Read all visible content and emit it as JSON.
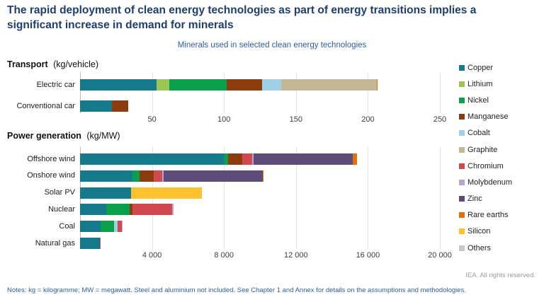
{
  "title": "The rapid deployment of clean energy technologies as part of energy transitions implies a significant increase in demand for minerals",
  "subtitle": "Minerals used in selected clean energy technologies",
  "footer": {
    "rights": "IEA. All rights reserved.",
    "notes": "Notes: kg = kilogramme; MW = megawatt. Steel and aluminium not included. See Chapter 1 and Annex for details on the assumptions and methodologies."
  },
  "colors": {
    "Copper": "#157a8b",
    "Lithium": "#9bc653",
    "Nickel": "#0ba04c",
    "Manganese": "#8d3c10",
    "Cobalt": "#9fd0e6",
    "Graphite": "#c3b795",
    "Chromium": "#d1494f",
    "Molybdenum": "#b5a5d3",
    "Zinc": "#5d4b79",
    "Rare earths": "#e1700e",
    "Silicon": "#fdc22d",
    "Others": "#c8c8c8"
  },
  "legend": [
    "Copper",
    "Lithium",
    "Nickel",
    "Manganese",
    "Cobalt",
    "Graphite",
    "Chromium",
    "Molybdenum",
    "Zinc",
    "Rare earths",
    "Silicon",
    "Others"
  ],
  "chart_data": [
    {
      "type": "bar",
      "orientation": "horizontal",
      "stacked": true,
      "title": "Transport",
      "unit": "(kg/vehicle)",
      "categories": [
        "Electric car",
        "Conventional car"
      ],
      "xmax": 250,
      "xticks": [
        50,
        100,
        150,
        200,
        250
      ],
      "xtick_labels": [
        "50",
        "100",
        "150",
        "200",
        "250"
      ],
      "grid": true,
      "legend_position": "right",
      "series": [
        {
          "name": "Copper",
          "values": [
            53.2,
            22.3
          ]
        },
        {
          "name": "Lithium",
          "values": [
            8.9,
            0
          ]
        },
        {
          "name": "Nickel",
          "values": [
            39.9,
            0
          ]
        },
        {
          "name": "Manganese",
          "values": [
            24.5,
            11.2
          ]
        },
        {
          "name": "Cobalt",
          "values": [
            13.3,
            0
          ]
        },
        {
          "name": "Graphite",
          "values": [
            66.3,
            0
          ]
        },
        {
          "name": "Rare earths",
          "values": [
            0.5,
            0
          ]
        }
      ]
    },
    {
      "type": "bar",
      "orientation": "horizontal",
      "stacked": true,
      "title": "Power generation",
      "unit": "(kg/MW)",
      "categories": [
        "Offshore wind",
        "Onshore wind",
        "Solar PV",
        "Nuclear",
        "Coal",
        "Natural gas"
      ],
      "xmax": 20000,
      "xticks": [
        4000,
        8000,
        12000,
        16000,
        20000
      ],
      "xtick_labels": [
        "4 000",
        "8 000",
        "12 000",
        "16 000",
        "20 000"
      ],
      "grid": true,
      "legend_position": "right",
      "series": [
        {
          "name": "Copper",
          "values": [
            8000,
            2900,
            2822,
            1473,
            1150,
            1100
          ]
        },
        {
          "name": "Nickel",
          "values": [
            240,
            404,
            0,
            1297,
            721,
            0
          ]
        },
        {
          "name": "Manganese",
          "values": [
            790,
            780,
            0,
            148,
            0,
            0
          ]
        },
        {
          "name": "Cobalt",
          "values": [
            0,
            0,
            0,
            0,
            201,
            0
          ]
        },
        {
          "name": "Chromium",
          "values": [
            525,
            470,
            0,
            2190,
            254,
            48
          ]
        },
        {
          "name": "Molybdenum",
          "values": [
            109,
            99,
            0,
            70,
            33,
            0
          ]
        },
        {
          "name": "Zinc",
          "values": [
            5500,
            5500,
            0,
            0,
            0,
            0
          ]
        },
        {
          "name": "Rare earths",
          "values": [
            239,
            14,
            0,
            0,
            0,
            0
          ]
        },
        {
          "name": "Silicon",
          "values": [
            0,
            0,
            3948,
            0,
            0,
            0
          ]
        }
      ]
    }
  ]
}
